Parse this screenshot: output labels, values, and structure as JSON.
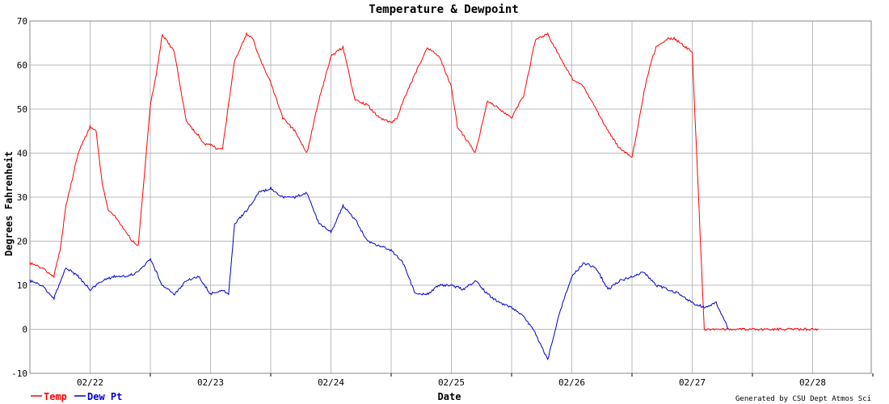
{
  "chart_data": {
    "type": "line",
    "title": "Temperature & Dewpoint",
    "xlabel": "Date",
    "ylabel": "Degrees Fahrenheit",
    "ylim": [
      -10,
      70
    ],
    "yticks": [
      -10,
      0,
      10,
      20,
      30,
      40,
      50,
      60,
      70
    ],
    "xlim": [
      0,
      7
    ],
    "xtick_labels": [
      "02/22",
      "02/23",
      "02/24",
      "02/25",
      "02/26",
      "02/27",
      "02/28"
    ],
    "grid": true,
    "legend_placement": "bottom-left",
    "credit": "Generated by CSU Dept Atmos Sci",
    "series": [
      {
        "name": "Temp",
        "color": "#ff0000",
        "x": [
          0,
          0.1,
          0.2,
          0.25,
          0.3,
          0.35,
          0.4,
          0.5,
          0.55,
          0.6,
          0.65,
          0.7,
          0.75,
          0.8,
          0.85,
          0.9,
          1.0,
          1.05,
          1.1,
          1.2,
          1.3,
          1.4,
          1.45,
          1.5,
          1.55,
          1.6,
          1.7,
          1.8,
          1.85,
          1.9,
          1.95,
          2.0,
          2.1,
          2.2,
          2.3,
          2.4,
          2.5,
          2.6,
          2.7,
          2.8,
          2.9,
          3.0,
          3.05,
          3.1,
          3.2,
          3.3,
          3.4,
          3.5,
          3.55,
          3.6,
          3.7,
          3.8,
          3.9,
          4.0,
          4.1,
          4.2,
          4.3,
          4.4,
          4.5,
          4.6,
          4.7,
          4.8,
          4.9,
          5.0,
          5.05,
          5.1,
          5.15,
          5.2,
          5.3,
          5.35,
          5.4,
          5.5,
          5.6,
          5.7,
          5.8,
          5.9,
          6.0,
          6.05,
          6.1,
          6.2,
          6.3,
          6.4,
          6.5,
          6.55,
          6.6,
          6.7
        ],
        "y": [
          15,
          14,
          12,
          18,
          28,
          34,
          40,
          46,
          45,
          33,
          27,
          26,
          24,
          22,
          20,
          19,
          51,
          58,
          67,
          63,
          47,
          44,
          42,
          42,
          41,
          41,
          61,
          67,
          66,
          62,
          59,
          56,
          48,
          45,
          40,
          52,
          62,
          64,
          52,
          51,
          48,
          47,
          48,
          52,
          58,
          64,
          62,
          55,
          46,
          44,
          40,
          52,
          50,
          48,
          53,
          66,
          67,
          62,
          57,
          55,
          50,
          45,
          41,
          39,
          46,
          54,
          60,
          64,
          66,
          66,
          65,
          63,
          0,
          0,
          0,
          0,
          0,
          0,
          0,
          0,
          0,
          0,
          0,
          0,
          0,
          0
        ]
      },
      {
        "name": "Dew Pt",
        "color": "#0000cc",
        "x": [
          0,
          0.1,
          0.2,
          0.3,
          0.4,
          0.5,
          0.6,
          0.7,
          0.8,
          0.9,
          1.0,
          1.1,
          1.2,
          1.3,
          1.4,
          1.5,
          1.6,
          1.65,
          1.7,
          1.8,
          1.9,
          2.0,
          2.1,
          2.2,
          2.3,
          2.4,
          2.5,
          2.6,
          2.7,
          2.8,
          2.9,
          3.0,
          3.1,
          3.2,
          3.3,
          3.4,
          3.5,
          3.6,
          3.7,
          3.8,
          3.9,
          4.0,
          4.1,
          4.2,
          4.3,
          4.4,
          4.5,
          4.6,
          4.7,
          4.8,
          4.9,
          5.0,
          5.1,
          5.2,
          5.3,
          5.4,
          5.5,
          5.6,
          5.7,
          5.8,
          5.9,
          6.0,
          6.1,
          6.2,
          6.3,
          6.4,
          6.5,
          6.6,
          6.7
        ],
        "y": [
          11,
          10,
          7,
          14,
          12,
          9,
          11,
          12,
          12,
          13,
          16,
          10,
          8,
          11,
          12,
          8,
          9,
          8,
          24,
          27,
          31,
          32,
          30,
          30,
          31,
          24,
          22,
          28,
          25,
          20,
          19,
          18,
          15,
          8,
          8,
          10,
          10,
          9,
          11,
          8,
          6,
          5,
          3,
          -1,
          -7,
          4,
          12,
          15,
          14,
          9,
          11,
          12,
          13,
          10,
          9,
          8,
          6,
          5,
          6,
          0,
          0,
          0,
          0,
          0,
          0,
          0,
          0,
          0,
          0
        ]
      }
    ]
  }
}
